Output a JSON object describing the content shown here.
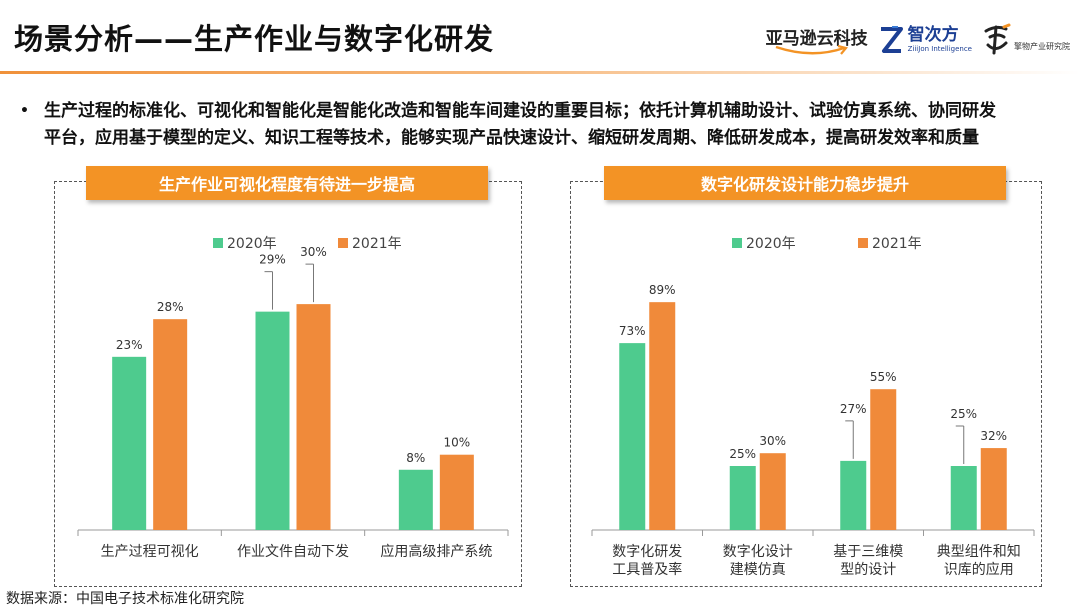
{
  "header": {
    "title": "场景分析——生产作业与数字化研发",
    "logos": {
      "amazon": "亚马逊云科技",
      "zhici_name": "智次方",
      "zhici_sub": "ZiiiJon Intelligence",
      "symbol_text": "擎物产业研究院"
    }
  },
  "bullet": {
    "lines": [
      "生产过程的标准化、可视化和智能化是智能化改造和智能车间建设的重要目标；依托计算机辅助设计、试验仿真系统、协同研发",
      "平台，应用基于模型的定义、知识工程等技术，能够实现产品快速设计、缩短研发周期、降低研发成本，提高研发效率和质量"
    ]
  },
  "colors": {
    "accent": "#f39325",
    "series_2020": "#4ecb8e",
    "series_2021": "#f08a3a",
    "whisker": "#777777"
  },
  "chart_data": [
    {
      "type": "bar",
      "title": "生产作业可视化程度有待进一步提高",
      "categories": [
        "生产过程可视化",
        "作业文件自动下发",
        "应用高级排产系统"
      ],
      "series": [
        {
          "name": "2020年",
          "values": [
            23,
            29,
            8
          ],
          "labels": [
            "23%",
            "29%",
            "8%"
          ]
        },
        {
          "name": "2021年",
          "values": [
            28,
            30,
            10
          ],
          "labels": [
            "28%",
            "30%",
            "10%"
          ]
        }
      ],
      "ylim": [
        0,
        34
      ],
      "legend": "top",
      "grid": false
    },
    {
      "type": "bar",
      "title": "数字化研发设计能力稳步提升",
      "categories": [
        "数字化研发\n工具普及率",
        "数字化设计\n建模仿真",
        "基于三维模\n型的设计",
        "典型组件和知\n识库的应用"
      ],
      "series": [
        {
          "name": "2020年",
          "values": [
            73,
            25,
            27,
            25
          ],
          "labels": [
            "73%",
            "25%",
            "27%",
            "25%"
          ]
        },
        {
          "name": "2021年",
          "values": [
            89,
            30,
            55,
            32
          ],
          "labels": [
            "89%",
            "30%",
            "55%",
            "32%"
          ]
        }
      ],
      "ylim": [
        0,
        100
      ],
      "legend": "top",
      "grid": false
    }
  ],
  "footer": {
    "source": "数据来源：中国电子技术标准化研究院"
  }
}
